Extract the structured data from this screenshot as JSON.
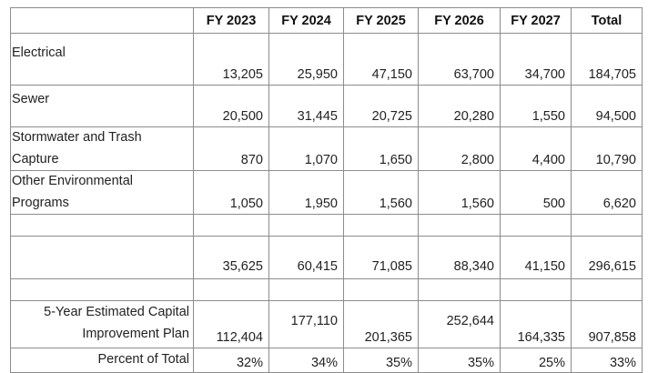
{
  "table": {
    "columns": [
      "",
      "FY 2023",
      "FY 2024",
      "FY 2025",
      "FY 2026",
      "FY 2027",
      "Total"
    ],
    "rows": [
      {
        "label": [
          "Electrical"
        ],
        "values": [
          "13,205",
          "25,950",
          "47,150",
          "63,700",
          "34,700",
          "184,705"
        ]
      },
      {
        "label": [
          "Sewer"
        ],
        "values": [
          "20,500",
          "31,445",
          "20,725",
          "20,280",
          "1,550",
          "94,500"
        ]
      },
      {
        "label": [
          "Stormwater and Trash",
          "Capture"
        ],
        "values": [
          "870",
          "1,070",
          "1,650",
          "2,800",
          "4,400",
          "10,790"
        ]
      },
      {
        "label": [
          "Other Environmental",
          "Programs"
        ],
        "values": [
          "1,050",
          "1,950",
          "1,560",
          "1,560",
          "500",
          "6,620"
        ]
      },
      {
        "label": [
          ""
        ],
        "values": [
          "",
          "",
          "",
          "",
          "",
          ""
        ]
      },
      {
        "label": [
          ""
        ],
        "values": [
          "35,625",
          "60,415",
          "71,085",
          "88,340",
          "41,150",
          "296,615"
        ]
      },
      {
        "label": [
          ""
        ],
        "values": [
          "",
          "",
          "",
          "",
          "",
          ""
        ]
      },
      {
        "label": [
          "5-Year Estimated Capital",
          "Improvement Plan"
        ],
        "values": [
          "112,404",
          "177,110",
          "201,365",
          "252,644",
          "164,335",
          "907,858"
        ]
      },
      {
        "label": [
          "Percent of Total"
        ],
        "values": [
          "32%",
          "34%",
          "35%",
          "35%",
          "25%",
          "33%"
        ]
      }
    ]
  }
}
